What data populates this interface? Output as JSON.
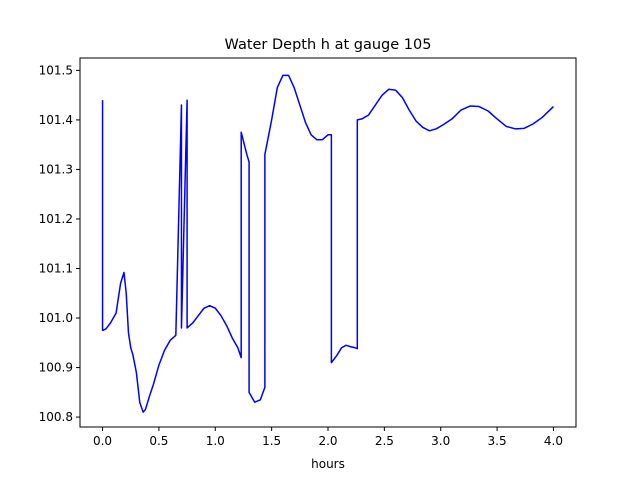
{
  "chart_data": {
    "type": "line",
    "title": "Water Depth h at gauge 105",
    "xlabel": "hours",
    "ylabel": "",
    "xlim": [
      -0.2,
      4.2
    ],
    "ylim": [
      100.78,
      101.525
    ],
    "xticks": [
      0.0,
      0.5,
      1.0,
      1.5,
      2.0,
      2.5,
      3.0,
      3.5,
      4.0
    ],
    "xtick_labels": [
      "0.0",
      "0.5",
      "1.0",
      "1.5",
      "2.0",
      "2.5",
      "3.0",
      "3.5",
      "4.0"
    ],
    "yticks": [
      100.8,
      100.9,
      101.0,
      101.1,
      101.2,
      101.3,
      101.4,
      101.5
    ],
    "ytick_labels": [
      "100.8",
      "100.9",
      "101.0",
      "101.1",
      "101.2",
      "101.3",
      "101.4",
      "101.5"
    ],
    "grid": false,
    "series": [
      {
        "color": "#0000ff",
        "x": [
          0.0,
          0.0,
          0.03,
          0.07,
          0.12,
          0.16,
          0.19,
          0.21,
          0.23,
          0.25,
          0.27,
          0.3,
          0.33,
          0.36,
          0.38,
          0.4,
          0.42,
          0.45,
          0.5,
          0.55,
          0.6,
          0.65,
          0.7,
          0.7,
          0.75,
          0.75,
          0.8,
          0.85,
          0.9,
          0.95,
          1.0,
          1.05,
          1.1,
          1.15,
          1.2,
          1.23,
          1.23,
          1.28,
          1.3,
          1.3,
          1.35,
          1.4,
          1.44,
          1.44,
          1.5,
          1.55,
          1.6,
          1.65,
          1.7,
          1.75,
          1.8,
          1.85,
          1.9,
          1.95,
          2.0,
          2.03,
          2.03,
          2.08,
          2.12,
          2.16,
          2.2,
          2.24,
          2.26,
          2.26,
          2.3,
          2.36,
          2.42,
          2.48,
          2.54,
          2.6,
          2.66,
          2.72,
          2.78,
          2.84,
          2.9,
          2.96,
          3.02,
          3.1,
          3.18,
          3.26,
          3.34,
          3.42,
          3.5,
          3.58,
          3.66,
          3.74,
          3.82,
          3.9,
          4.0
        ],
        "y": [
          101.44,
          100.975,
          100.978,
          100.99,
          101.01,
          101.07,
          101.092,
          101.05,
          100.97,
          100.94,
          100.925,
          100.89,
          100.83,
          100.81,
          100.815,
          100.83,
          100.845,
          100.865,
          100.905,
          100.935,
          100.955,
          100.965,
          101.43,
          100.98,
          101.44,
          100.98,
          100.99,
          101.005,
          101.02,
          101.025,
          101.02,
          101.005,
          100.985,
          100.96,
          100.94,
          100.92,
          101.375,
          101.33,
          101.315,
          100.85,
          100.83,
          100.835,
          100.86,
          101.33,
          101.4,
          101.465,
          101.49,
          101.49,
          101.465,
          101.43,
          101.395,
          101.37,
          101.36,
          101.36,
          101.37,
          101.37,
          100.91,
          100.925,
          100.94,
          100.945,
          100.942,
          100.94,
          100.938,
          101.4,
          101.402,
          101.41,
          101.43,
          101.45,
          101.462,
          101.46,
          101.445,
          101.42,
          101.398,
          101.385,
          101.378,
          101.382,
          101.39,
          101.402,
          101.42,
          101.428,
          101.427,
          101.418,
          101.402,
          101.387,
          101.382,
          101.383,
          101.392,
          101.405,
          101.427
        ]
      }
    ]
  }
}
